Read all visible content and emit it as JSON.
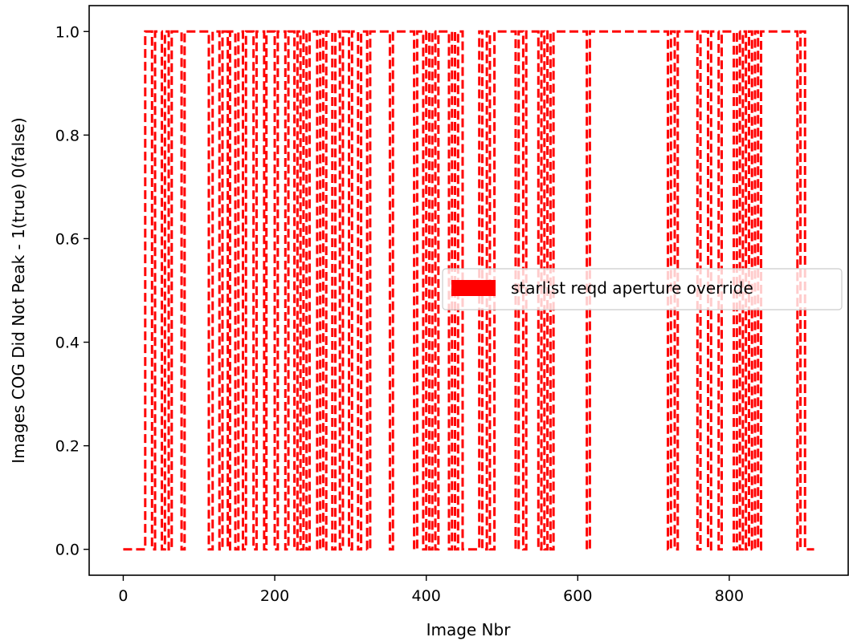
{
  "chart_data": {
    "type": "line",
    "title": "",
    "xlabel": "Image Nbr",
    "ylabel": "Images COG Did Not Peak - 1(true) 0(false)",
    "xlim": [
      -45,
      957
    ],
    "ylim": [
      -0.05,
      1.05
    ],
    "xticks": [
      0,
      200,
      400,
      600,
      800
    ],
    "yticks": [
      0.0,
      0.2,
      0.4,
      0.6,
      0.8,
      1.0
    ],
    "xtick_labels": [
      "0",
      "200",
      "400",
      "600",
      "800"
    ],
    "ytick_labels": [
      "0.0",
      "0.2",
      "0.4",
      "0.6",
      "0.8",
      "1.0"
    ],
    "grid": false,
    "legend_placement": "center-right",
    "series": [
      {
        "name": "starlist reqd aperture override",
        "color": "#ff0000",
        "line_style": "dashed",
        "step": true,
        "x": [
          0,
          24,
          29,
          38,
          42,
          51,
          55,
          60,
          64,
          77,
          81,
          113,
          118,
          127,
          131,
          138,
          141,
          148,
          152,
          158,
          162,
          172,
          176,
          186,
          189,
          200,
          204,
          214,
          218,
          226,
          230,
          234,
          238,
          242,
          246,
          256,
          260,
          264,
          268,
          276,
          280,
          286,
          290,
          298,
          302,
          310,
          314,
          322,
          326,
          352,
          356,
          384,
          388,
          396,
          400,
          404,
          408,
          412,
          416,
          430,
          434,
          438,
          442,
          448,
          470,
          474,
          480,
          484,
          490,
          518,
          522,
          528,
          532,
          548,
          552,
          556,
          560,
          564,
          568,
          612,
          616,
          719,
          723,
          728,
          732,
          758,
          762,
          772,
          776,
          786,
          790,
          806,
          810,
          814,
          818,
          822,
          826,
          830,
          834,
          838,
          842,
          890,
          894,
          900,
          912
        ],
        "y": [
          0,
          0,
          1,
          0,
          1,
          0,
          1,
          0,
          1,
          0,
          1,
          0,
          1,
          0,
          1,
          0,
          1,
          0,
          1,
          0,
          1,
          0,
          1,
          0,
          1,
          0,
          1,
          0,
          1,
          0,
          1,
          0,
          1,
          0,
          1,
          0,
          1,
          0,
          1,
          0,
          1,
          0,
          1,
          0,
          1,
          0,
          1,
          0,
          1,
          0,
          1,
          0,
          1,
          0,
          1,
          0,
          1,
          0,
          1,
          0,
          1,
          0,
          1,
          0,
          1,
          0,
          1,
          0,
          1,
          0,
          1,
          0,
          1,
          0,
          1,
          0,
          1,
          0,
          1,
          0,
          1,
          0,
          1,
          0,
          1,
          0,
          1,
          0,
          1,
          0,
          1,
          0,
          1,
          0,
          1,
          0,
          1,
          0,
          1,
          0,
          1,
          0,
          1,
          0,
          0
        ]
      }
    ]
  }
}
